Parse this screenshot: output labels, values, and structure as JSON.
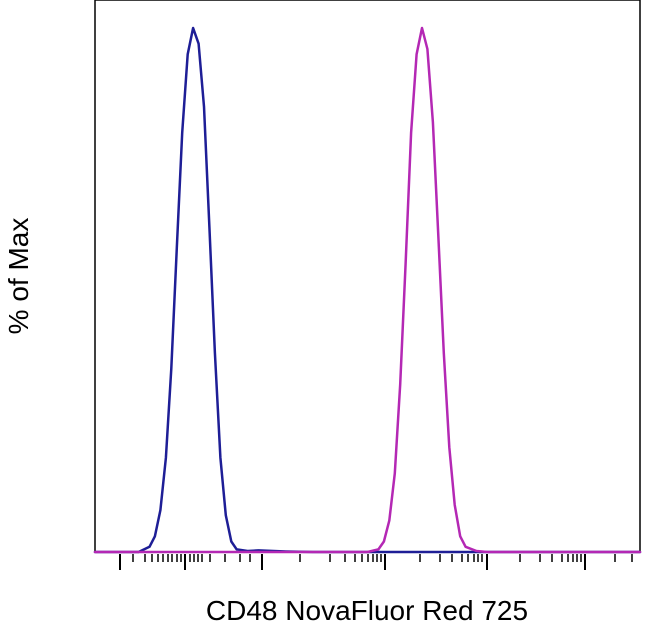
{
  "chart_data": {
    "type": "line",
    "title": "",
    "xlabel": "CD48 NovaFluor Red 725",
    "ylabel": "% of Max",
    "xlim": [
      0,
      100
    ],
    "ylim": [
      0,
      100
    ],
    "x_scale": "biexponential",
    "x_tick_labels": false,
    "grid": false,
    "legend": "none",
    "series": [
      {
        "color": "#1e1e96",
        "x": [
          0,
          8,
          10,
          11,
          12,
          13,
          14,
          15,
          16,
          17,
          18,
          19,
          20,
          21,
          22,
          23,
          24,
          25,
          26,
          28,
          30,
          35,
          40,
          100
        ],
        "y": [
          0,
          0,
          1,
          3,
          8,
          18,
          35,
          58,
          80,
          95,
          100,
          97,
          85,
          62,
          38,
          18,
          7,
          2,
          0.5,
          0.2,
          0.3,
          0.1,
          0,
          0
        ]
      },
      {
        "color": "#b428b4",
        "x": [
          0,
          50,
          52,
          53,
          54,
          55,
          56,
          57,
          58,
          59,
          60,
          61,
          62,
          63,
          64,
          65,
          66,
          67,
          68,
          70,
          72,
          100
        ],
        "y": [
          0,
          0,
          0.5,
          2,
          6,
          15,
          32,
          55,
          80,
          95,
          100,
          96,
          82,
          60,
          38,
          20,
          9,
          3,
          1,
          0.2,
          0,
          0
        ]
      }
    ]
  }
}
